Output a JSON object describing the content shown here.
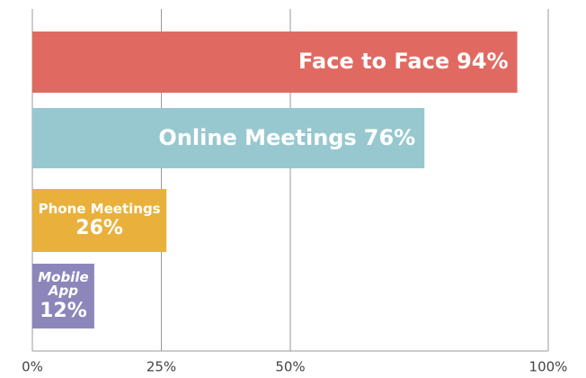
{
  "chart_data": {
    "type": "bar",
    "orientation": "horizontal",
    "categories": [
      "Face to Face",
      "Online Meetings",
      "Phone Meetings",
      "Mobile App"
    ],
    "values": [
      94,
      76,
      26,
      12
    ],
    "value_labels": [
      "94%",
      "76%",
      "26%",
      "12%"
    ],
    "colors": [
      "#e06a62",
      "#98c8cf",
      "#e9b13c",
      "#8c86bb"
    ],
    "xlim": [
      0,
      100
    ],
    "xticks": [
      {
        "value": 0,
        "label": "0%"
      },
      {
        "value": 25,
        "label": "25%"
      },
      {
        "value": 50,
        "label": "50%"
      },
      {
        "value": 100,
        "label": "100%"
      }
    ],
    "grid": true
  }
}
